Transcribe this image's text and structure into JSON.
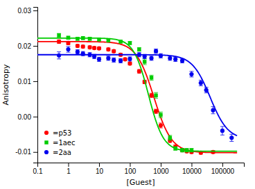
{
  "chart_data": {
    "type": "scatter",
    "xlabel": "[Guest]",
    "ylabel": "Anisotropy",
    "log": "x",
    "xlim": [
      0.1,
      500000
    ],
    "ylim": [
      -0.013,
      0.031
    ],
    "xticks": [
      0.1,
      1,
      10,
      100,
      1000,
      10000,
      100000
    ],
    "yticks": [
      -0.01,
      {
        "value": 0.0,
        "label": "0.00"
      },
      0.01,
      0.02,
      0.03
    ],
    "legend": "lower left",
    "series": [
      {
        "name": "=p53",
        "color": "#ff0000",
        "marker": "circle",
        "x": [
          0.5,
          1.0,
          2.0,
          3.0,
          5.0,
          7.0,
          10.0,
          20.0,
          30.0,
          50.0,
          70.0,
          100.0,
          200.0,
          300.0,
          500.0,
          700.0,
          1000.0,
          2000.0,
          3000.0,
          5000.0,
          7000.0,
          10000.0,
          20000.0,
          50000.0
        ],
        "values": [
          0.0212,
          0.0208,
          0.02,
          0.0198,
          0.0196,
          0.0194,
          0.0193,
          0.019,
          0.0185,
          0.0175,
          0.0162,
          0.015,
          0.0128,
          0.0098,
          0.006,
          0.0015,
          -0.0025,
          -0.0068,
          -0.0085,
          -0.0095,
          -0.0098,
          -0.01,
          -0.0102,
          -0.01
        ],
        "errors": [
          0.0005,
          0.0005,
          0.0004,
          0.0004,
          0.0004,
          0.0004,
          0.0004,
          0.0004,
          0.0004,
          0.0004,
          0.0004,
          0.0004,
          0.0005,
          0.0005,
          0.0006,
          0.0006,
          0.0007,
          0.0005,
          0.0005,
          0.0004,
          0.0004,
          0.0004,
          0.0004,
          0.0004
        ],
        "fit": {
          "top": 0.0212,
          "bottom": -0.0102,
          "ec50": 600,
          "n": 1.5,
          "x_range": [
            0.1,
            300000
          ]
        }
      },
      {
        "name": "=1aec",
        "color": "#00cc00",
        "marker": "square",
        "x": [
          0.5,
          1.0,
          2.0,
          3.0,
          5.0,
          10.0,
          20.0,
          50.0,
          100.0,
          200.0,
          300.0,
          500.0,
          700.0,
          1000.0,
          2000.0,
          3000.0,
          5000.0,
          7000.0,
          10000.0
        ],
        "values": [
          0.023,
          0.0223,
          0.022,
          0.0222,
          0.022,
          0.0218,
          0.0215,
          0.0212,
          0.0208,
          0.019,
          0.0155,
          0.011,
          0.006,
          0.0005,
          -0.006,
          -0.009,
          -0.0095,
          -0.0095,
          -0.0095
        ],
        "errors": [
          0.0005,
          0.0004,
          0.0004,
          0.0004,
          0.0004,
          0.0004,
          0.0004,
          0.0004,
          0.0004,
          0.0005,
          0.0008,
          0.0007,
          0.0008,
          0.0008,
          0.0007,
          0.0005,
          0.0005,
          0.0005,
          0.0005
        ],
        "fit": {
          "top": 0.0222,
          "bottom": -0.0098,
          "ec50": 400,
          "n": 1.8,
          "x_range": [
            0.1,
            300000
          ]
        }
      },
      {
        "name": "=2aa",
        "color": "#0000ee",
        "marker": "circle",
        "x": [
          0.5,
          1.0,
          2.0,
          3.0,
          5.0,
          7.0,
          10.0,
          20.0,
          30.0,
          50.0,
          100.0,
          200.0,
          300.0,
          500.0,
          700.0,
          1000.0,
          2000.0,
          3000.0,
          5000.0,
          10000.0,
          20000.0,
          30000.0,
          50000.0,
          100000.0,
          200000.0
        ],
        "values": [
          0.0173,
          0.019,
          0.0183,
          0.0178,
          0.0175,
          0.017,
          0.0162,
          0.0165,
          0.016,
          0.0158,
          0.0163,
          0.0175,
          0.017,
          0.0165,
          0.0185,
          0.0172,
          0.0165,
          0.0162,
          0.0158,
          0.012,
          0.0095,
          0.0075,
          0.0018,
          -0.004,
          -0.006
        ],
        "errors": [
          0.001,
          0.0008,
          0.0006,
          0.0006,
          0.0006,
          0.0006,
          0.0006,
          0.0006,
          0.0006,
          0.0006,
          0.0006,
          0.0006,
          0.0006,
          0.0006,
          0.0006,
          0.0006,
          0.0006,
          0.0006,
          0.0006,
          0.0008,
          0.0008,
          0.0008,
          0.001,
          0.0012,
          0.001
        ],
        "fit": {
          "top": 0.0175,
          "bottom": -0.0065,
          "ec50": 40000,
          "n": 1.5,
          "x_range": [
            0.1,
            300000
          ]
        }
      }
    ]
  }
}
